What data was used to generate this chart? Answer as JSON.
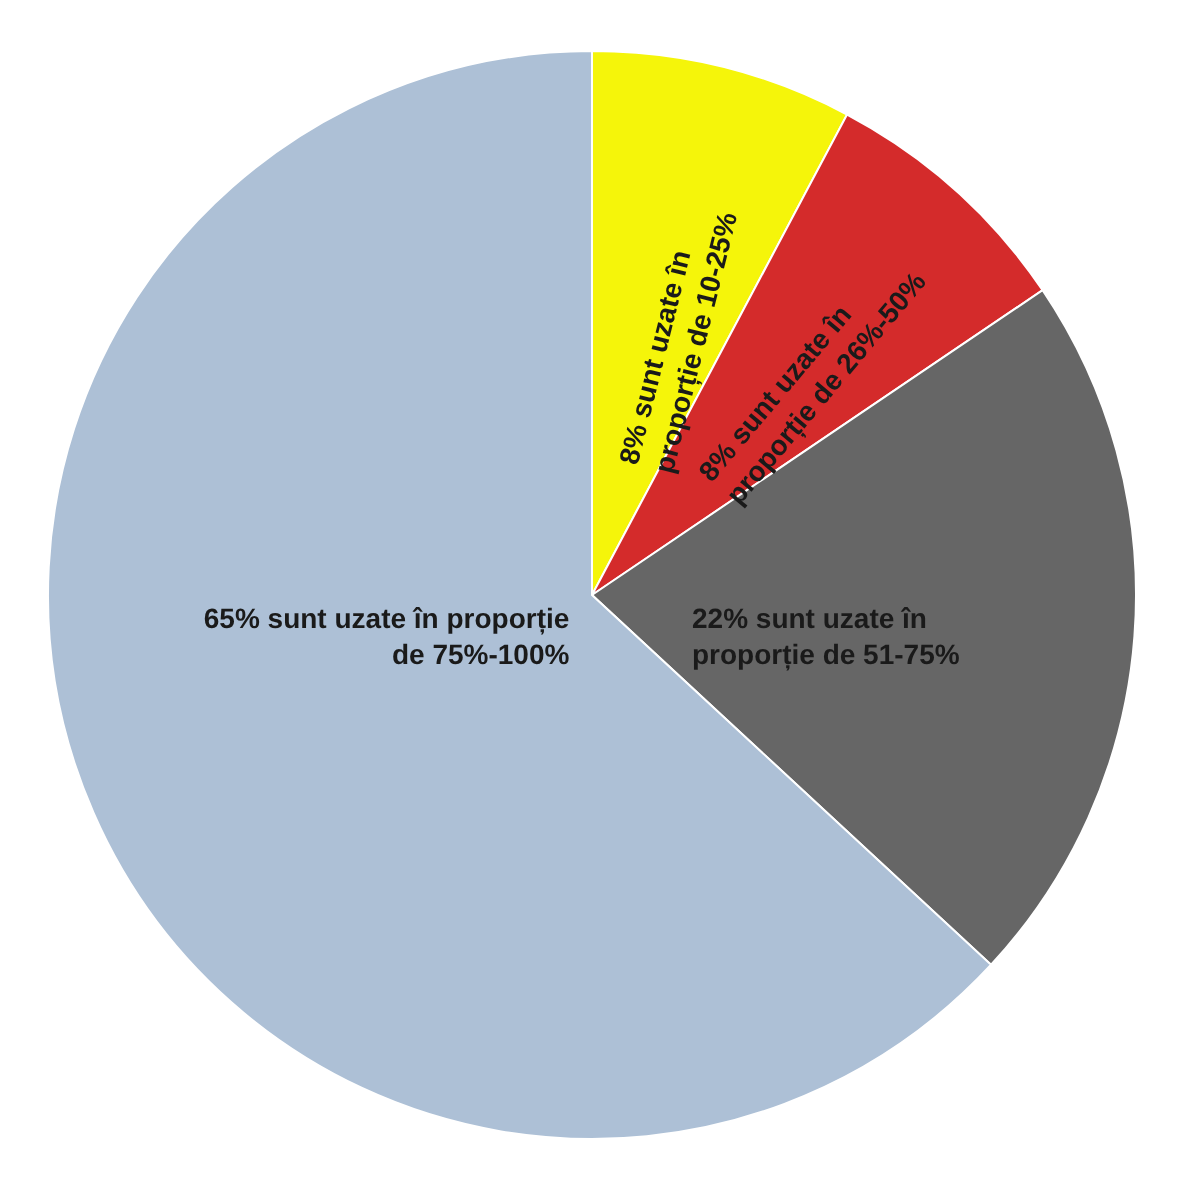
{
  "chart_data": {
    "type": "pie",
    "categories": [
      "8% sunt uzate în\nproporție de 10-25%",
      "8% sunt uzate în\nproporție de 26%-50%",
      "22% sunt uzate în\nproporție de 51-75%",
      "65% sunt uzate în proporție\nde 75%-100%"
    ],
    "values": [
      8,
      8,
      22,
      65
    ],
    "colors": [
      "#f5f50a",
      "#d42b2b",
      "#666666",
      "#adc0d6"
    ]
  }
}
